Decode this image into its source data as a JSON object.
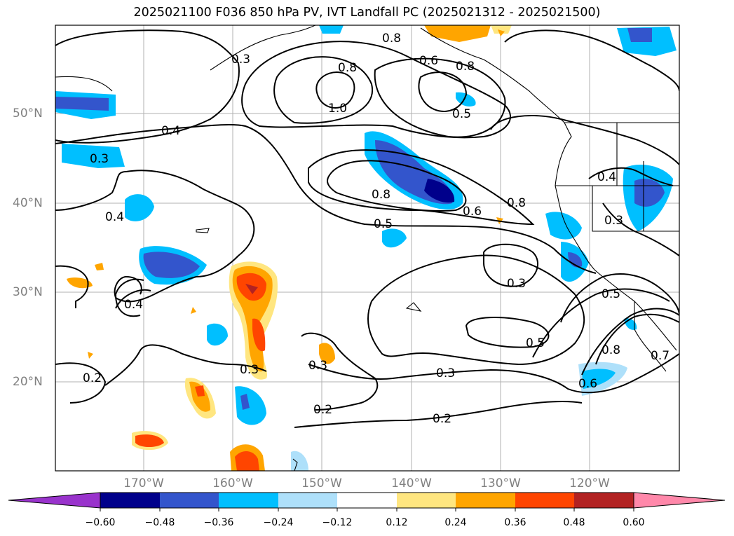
{
  "title": "2025021100 F036 850 hPa PV, IVT Landfall PC (2025021312 - 2025021500)",
  "lat_labels": [
    "50°N",
    "40°N",
    "30°N",
    "20°N"
  ],
  "lon_labels": [
    "170°W",
    "160°W",
    "150°W",
    "140°W",
    "130°W",
    "120°W"
  ],
  "colorbar": {
    "ticks": [
      "−0.60",
      "−0.48",
      "−0.36",
      "−0.24",
      "−0.12",
      "0.12",
      "0.24",
      "0.36",
      "0.48",
      "0.60"
    ],
    "colors": [
      "#9933cc",
      "#00008b",
      "#3355cc",
      "#00bfff",
      "#aee0fa",
      "#ffffff",
      "#ffe680",
      "#ffa500",
      "#ff4500",
      "#b22222",
      "#ff88aa"
    ]
  },
  "contour_labels": [
    "0.8",
    "0.6",
    "0.8",
    "1.0",
    "0.8",
    "0.5",
    "0.4",
    "0.3",
    "0.4",
    "0.8",
    "0.6",
    "0.8",
    "0.4",
    "0.5",
    "0.3",
    "0.3",
    "0.4",
    "0.5",
    "0.5",
    "0.8",
    "0.7",
    "0.6",
    "0.3",
    "0.3",
    "0.2",
    "0.3",
    "0.2",
    "0.2",
    "0.3"
  ]
}
